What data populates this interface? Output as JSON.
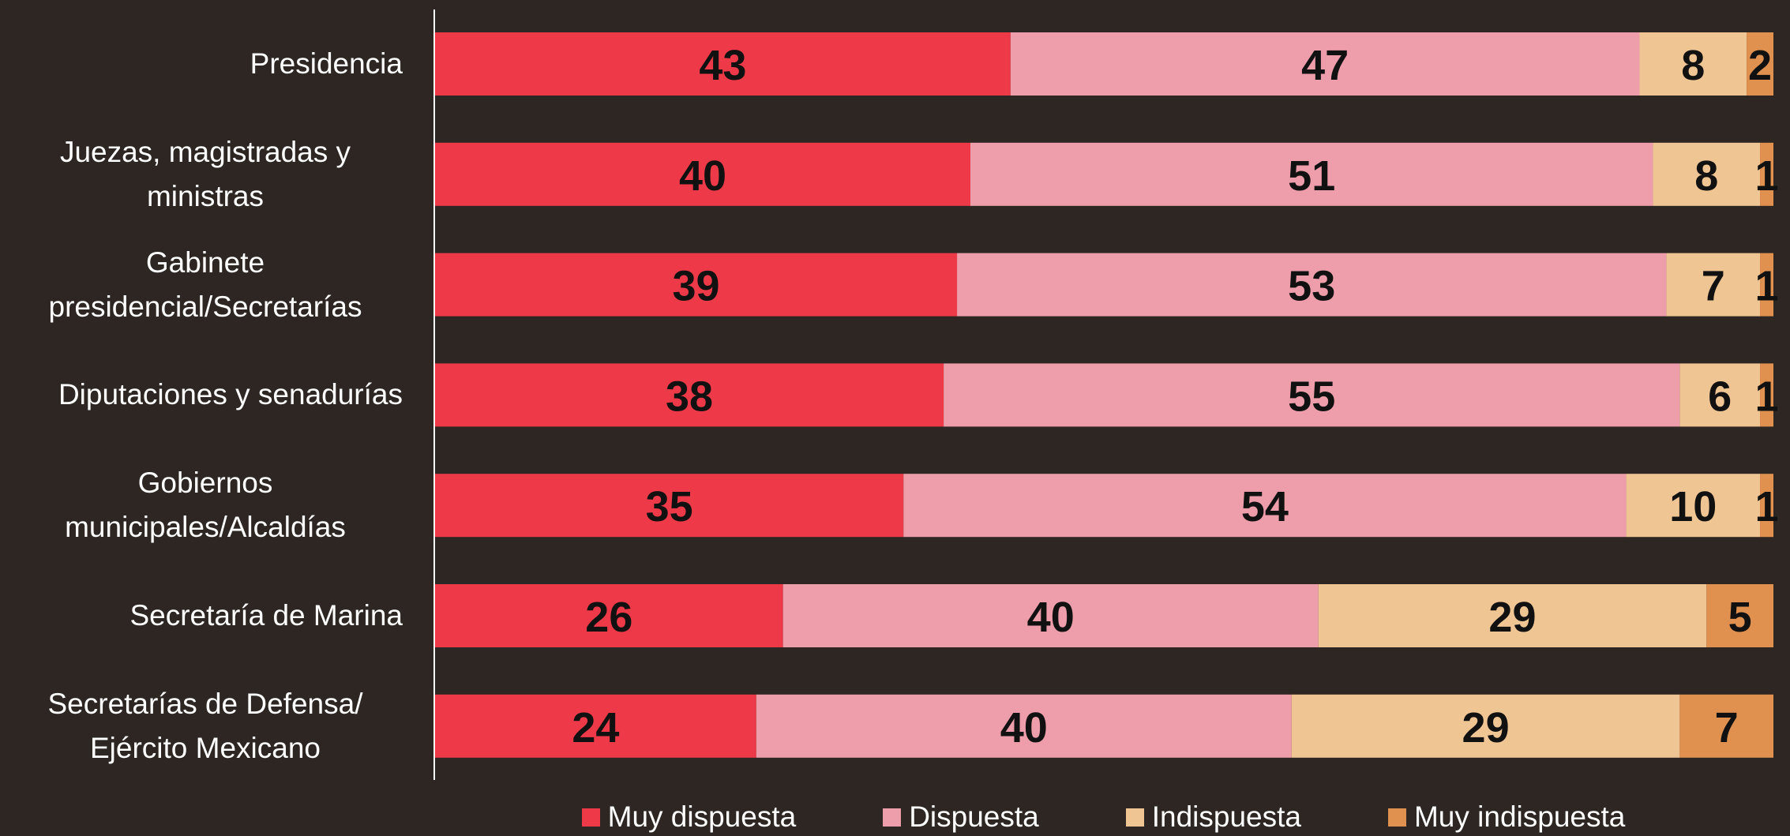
{
  "chart_data": {
    "type": "stacked_bar_horizontal",
    "categories": [
      "Presidencia",
      "Juezas, magistradas y ministras",
      "Gabinete presidencial/Secretarías",
      "Diputaciones y senadurías",
      "Gobiernos municipales/Alcaldías",
      "Secretaría de Marina",
      "Secretarías de Defensa/ Ejército Mexicano"
    ],
    "series": [
      {
        "name": "Muy dispuesta",
        "color": "#ee3a48",
        "values": [
          43,
          40,
          39,
          38,
          35,
          26,
          24
        ]
      },
      {
        "name": "Dispuesta",
        "color": "#ee9daa",
        "values": [
          47,
          51,
          53,
          55,
          54,
          40,
          40
        ]
      },
      {
        "name": "Indispuesta",
        "color": "#f0c594",
        "values": [
          8,
          8,
          7,
          6,
          10,
          29,
          29
        ]
      },
      {
        "name": "Muy indispuesta",
        "color": "#e0914f",
        "values": [
          2,
          1,
          1,
          1,
          1,
          5,
          7
        ]
      }
    ],
    "xlim": [
      0,
      100
    ]
  }
}
